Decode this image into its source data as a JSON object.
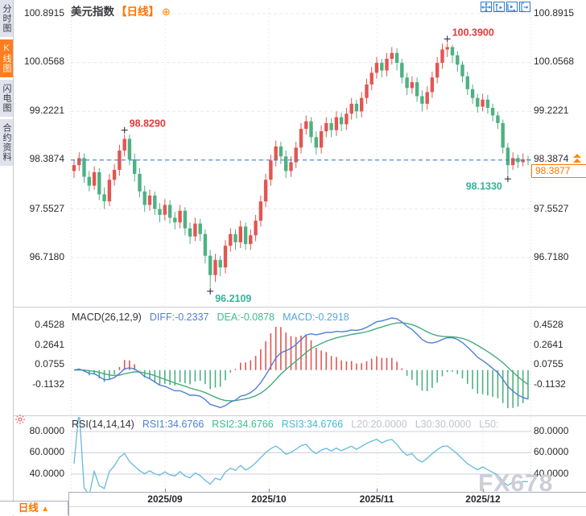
{
  "header": {
    "title": "美元指数",
    "timeframe_tag": "【日线】",
    "add_icon": "⊕"
  },
  "sidebar": {
    "tabs": [
      {
        "label": "分时图"
      },
      {
        "label": "K线图"
      },
      {
        "label": "闪电图"
      },
      {
        "label": "合约资料"
      }
    ],
    "active_index": 1
  },
  "toolbar": {
    "buttons": [
      "pan",
      "scale-y-axis",
      "scale-x-axis",
      "jump-to-latest"
    ]
  },
  "price_axis": {
    "labels": [
      "100.8915",
      "100.0568",
      "99.2221",
      "98.3874",
      "97.5527",
      "96.7180"
    ]
  },
  "current_price": {
    "axis_value": "98.3874",
    "tag_value": "98.3877",
    "line_price": 98.3874
  },
  "macd": {
    "title": "MACD(26,12,9)",
    "diff": "DIFF:-0.2337",
    "dea": "DEA:-0.0878",
    "macd": "MACD:-0.2918",
    "axis_labels": [
      "0.4528",
      "0.2641",
      "0.0755",
      "-0.1132"
    ]
  },
  "rsi": {
    "title": "RSI(14,14,14)",
    "rsi1": "RSI1:34.6766",
    "rsi2": "RSI2:34.6766",
    "rsi3": "RSI3:34.6766",
    "l20": "L20:20.0000",
    "l30": "L30:30.0000",
    "l50": "L50:",
    "axis_labels": [
      "80.0000",
      "60.0000",
      "40.0000"
    ]
  },
  "x_axis": {
    "labels": [
      "2025/09",
      "2025/10",
      "2025/11",
      "2025/12"
    ],
    "positions": [
      0.205,
      0.43,
      0.665,
      0.895
    ]
  },
  "footer": {
    "timeframe_button": "日线",
    "arrow": "▲"
  },
  "watermark": "FX678",
  "colors": {
    "accent": "#ff7300",
    "up": "#e25652",
    "down": "#4eb182",
    "diff_line": "#4e7fd6",
    "dea_line": "#46ab7e",
    "macd_value": "#56a8dc",
    "rsi_line": "#66b9dc",
    "current_line": "#3d7fd6",
    "annotation_red": "#e23b3b",
    "annotation_green": "#35b39a",
    "grid": "#e8e8f0"
  },
  "chart_data": {
    "type": "candlestick",
    "title": "美元指数 日线",
    "x_tick_labels": [
      "2025/09",
      "2025/10",
      "2025/11",
      "2025/12"
    ],
    "y_axis_ticks": [
      100.8915,
      100.0568,
      99.2221,
      98.3874,
      97.5527,
      96.718
    ],
    "ylim": [
      96.45,
      100.99
    ],
    "last_price": 98.3877,
    "candles_ohlc": [
      [
        98.2,
        98.4,
        98.08,
        98.3
      ],
      [
        98.3,
        98.52,
        98.2,
        98.42
      ],
      [
        98.42,
        98.5,
        98.0,
        98.1
      ],
      [
        98.1,
        98.2,
        97.85,
        97.95
      ],
      [
        97.95,
        98.28,
        97.88,
        98.18
      ],
      [
        98.18,
        98.25,
        97.7,
        97.8
      ],
      [
        97.8,
        97.92,
        97.55,
        97.68
      ],
      [
        97.68,
        98.15,
        97.6,
        98.05
      ],
      [
        98.05,
        98.32,
        97.95,
        98.22
      ],
      [
        98.22,
        98.65,
        98.12,
        98.55
      ],
      [
        98.55,
        98.829,
        98.45,
        98.75
      ],
      [
        98.75,
        98.82,
        98.3,
        98.4
      ],
      [
        98.4,
        98.5,
        98.02,
        98.15
      ],
      [
        98.15,
        98.25,
        97.75,
        97.85
      ],
      [
        97.85,
        97.95,
        97.5,
        97.62
      ],
      [
        97.62,
        97.88,
        97.52,
        97.78
      ],
      [
        97.78,
        97.85,
        97.45,
        97.55
      ],
      [
        97.55,
        97.65,
        97.32,
        97.45
      ],
      [
        97.45,
        97.72,
        97.35,
        97.62
      ],
      [
        97.62,
        97.7,
        97.3,
        97.4
      ],
      [
        97.4,
        97.5,
        97.2,
        97.32
      ],
      [
        97.32,
        97.62,
        97.22,
        97.52
      ],
      [
        97.52,
        97.58,
        97.1,
        97.22
      ],
      [
        97.22,
        97.32,
        96.95,
        97.08
      ],
      [
        97.08,
        97.4,
        97.0,
        97.3
      ],
      [
        97.3,
        97.38,
        97.0,
        97.12
      ],
      [
        97.12,
        97.2,
        96.62,
        96.75
      ],
      [
        96.75,
        96.85,
        96.2109,
        96.42
      ],
      [
        96.42,
        96.78,
        96.3,
        96.68
      ],
      [
        96.68,
        96.75,
        96.4,
        96.55
      ],
      [
        96.55,
        97.02,
        96.45,
        96.92
      ],
      [
        96.92,
        97.22,
        96.82,
        97.12
      ],
      [
        97.12,
        97.2,
        96.85,
        96.98
      ],
      [
        96.98,
        97.35,
        96.88,
        97.25
      ],
      [
        97.25,
        97.32,
        96.85,
        96.95
      ],
      [
        96.95,
        97.2,
        96.85,
        97.1
      ],
      [
        97.1,
        97.45,
        97.0,
        97.35
      ],
      [
        97.35,
        97.78,
        97.25,
        97.68
      ],
      [
        97.68,
        98.15,
        97.58,
        98.05
      ],
      [
        98.05,
        98.48,
        97.95,
        98.38
      ],
      [
        98.38,
        98.72,
        98.28,
        98.62
      ],
      [
        98.62,
        98.7,
        98.32,
        98.45
      ],
      [
        98.45,
        98.55,
        98.08,
        98.2
      ],
      [
        98.2,
        98.45,
        98.1,
        98.35
      ],
      [
        98.35,
        98.7,
        98.25,
        98.6
      ],
      [
        98.6,
        99.02,
        98.5,
        98.92
      ],
      [
        98.92,
        99.15,
        98.82,
        99.05
      ],
      [
        99.05,
        99.12,
        98.68,
        98.78
      ],
      [
        98.78,
        98.88,
        98.48,
        98.6
      ],
      [
        98.6,
        98.98,
        98.5,
        98.88
      ],
      [
        98.88,
        99.12,
        98.78,
        99.02
      ],
      [
        99.02,
        99.1,
        98.78,
        98.9
      ],
      [
        98.9,
        99.22,
        98.8,
        99.12
      ],
      [
        99.12,
        99.2,
        98.88,
        99.0
      ],
      [
        99.0,
        99.28,
        98.9,
        99.18
      ],
      [
        99.18,
        99.45,
        99.08,
        99.35
      ],
      [
        99.35,
        99.42,
        99.1,
        99.22
      ],
      [
        99.22,
        99.55,
        99.12,
        99.45
      ],
      [
        99.45,
        99.78,
        99.35,
        99.68
      ],
      [
        99.68,
        99.98,
        99.58,
        99.88
      ],
      [
        99.88,
        100.15,
        99.78,
        100.05
      ],
      [
        100.05,
        100.12,
        99.8,
        99.92
      ],
      [
        99.92,
        100.22,
        99.82,
        100.12
      ],
      [
        100.12,
        100.32,
        100.02,
        100.22
      ],
      [
        100.22,
        100.3,
        99.92,
        100.05
      ],
      [
        100.05,
        100.12,
        99.7,
        99.8
      ],
      [
        99.8,
        99.88,
        99.5,
        99.62
      ],
      [
        99.62,
        99.82,
        99.52,
        99.72
      ],
      [
        99.72,
        99.8,
        99.38,
        99.48
      ],
      [
        99.48,
        99.58,
        99.22,
        99.35
      ],
      [
        99.35,
        99.65,
        99.25,
        99.55
      ],
      [
        99.55,
        99.9,
        99.45,
        99.8
      ],
      [
        99.8,
        100.15,
        99.7,
        100.05
      ],
      [
        100.05,
        100.38,
        99.95,
        100.28
      ],
      [
        100.28,
        100.39,
        100.15,
        100.32
      ],
      [
        100.32,
        100.36,
        100.05,
        100.18
      ],
      [
        100.18,
        100.25,
        99.9,
        100.02
      ],
      [
        100.02,
        100.08,
        99.72,
        99.82
      ],
      [
        99.82,
        99.9,
        99.5,
        99.6
      ],
      [
        99.6,
        99.68,
        99.35,
        99.45
      ],
      [
        99.45,
        99.52,
        99.2,
        99.3
      ],
      [
        99.3,
        99.52,
        99.22,
        99.42
      ],
      [
        99.42,
        99.5,
        99.18,
        99.28
      ],
      [
        99.28,
        99.35,
        99.05,
        99.15
      ],
      [
        99.15,
        99.22,
        98.92,
        99.02
      ],
      [
        99.02,
        99.08,
        98.5,
        98.6
      ],
      [
        98.6,
        98.68,
        98.133,
        98.3
      ],
      [
        98.3,
        98.52,
        98.22,
        98.42
      ],
      [
        98.42,
        98.48,
        98.25,
        98.35
      ],
      [
        98.35,
        98.5,
        98.28,
        98.4
      ],
      [
        98.4,
        98.46,
        98.3,
        98.3877
      ]
    ],
    "annotations": [
      {
        "index": 10,
        "price": 98.829,
        "label": "98.8290",
        "side": "above",
        "color": "#e23b3b"
      },
      {
        "index": 27,
        "price": 96.2109,
        "label": "96.2109",
        "side": "below",
        "color": "#35b39a"
      },
      {
        "index": 74,
        "price": 100.39,
        "label": "100.3900",
        "side": "above",
        "color": "#e23b3b"
      },
      {
        "index": 86,
        "price": 98.133,
        "label": "98.1330",
        "side": "below-left",
        "color": "#35b39a"
      }
    ],
    "indicators": {
      "macd": {
        "params": [
          26,
          12,
          9
        ],
        "diff": -0.2337,
        "dea": -0.0878,
        "macd": -0.2918,
        "y_ticks": [
          0.4528,
          0.2641,
          0.0755,
          -0.1132
        ]
      },
      "rsi": {
        "params": [
          14,
          14,
          14
        ],
        "rsi1": 34.6766,
        "rsi2": 34.6766,
        "rsi3": 34.6766,
        "levels": {
          "L20": 20.0,
          "L30": 30.0,
          "L50": ""
        },
        "y_ticks": [
          80.0,
          60.0,
          40.0
        ]
      }
    }
  }
}
